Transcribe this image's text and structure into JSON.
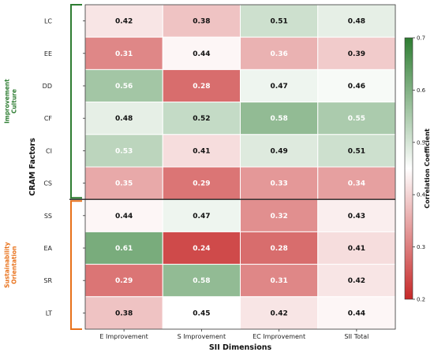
{
  "chart_data": {
    "type": "heatmap",
    "rows": [
      "LC",
      "EE",
      "DD",
      "CF",
      "CI",
      "CS",
      "SS",
      "EA",
      "SR",
      "LT"
    ],
    "columns": [
      "E Improvement",
      "S Improvement",
      "EC Improvement",
      "SII Total"
    ],
    "values": [
      [
        0.42,
        0.38,
        0.51,
        0.48
      ],
      [
        0.31,
        0.44,
        0.36,
        0.39
      ],
      [
        0.56,
        0.28,
        0.47,
        0.46
      ],
      [
        0.48,
        0.52,
        0.58,
        0.55
      ],
      [
        0.53,
        0.41,
        0.49,
        0.51
      ],
      [
        0.35,
        0.29,
        0.33,
        0.34
      ],
      [
        0.44,
        0.47,
        0.32,
        0.43
      ],
      [
        0.61,
        0.24,
        0.28,
        0.41
      ],
      [
        0.29,
        0.58,
        0.31,
        0.42
      ],
      [
        0.38,
        0.45,
        0.42,
        0.44
      ]
    ],
    "xlabel": "SII Dimensions",
    "ylabel": "CRAM Factors",
    "groups": [
      {
        "name": "Improvement Culture",
        "rows": [
          "LC",
          "EE",
          "DD",
          "CF",
          "CI",
          "CS"
        ],
        "color": "#2e7d32"
      },
      {
        "name": "Sustainability Orientation",
        "rows": [
          "SS",
          "EA",
          "SR",
          "LT"
        ],
        "color": "#e8711a"
      }
    ],
    "colorbar": {
      "label": "Correlation Coefficient",
      "min": 0.2,
      "max": 0.7,
      "ticks": [
        0.2,
        0.3,
        0.4,
        0.5,
        0.6,
        0.7
      ],
      "low_color": "#c62828",
      "mid_color": "#ffffff",
      "high_color": "#2e7d32"
    }
  }
}
